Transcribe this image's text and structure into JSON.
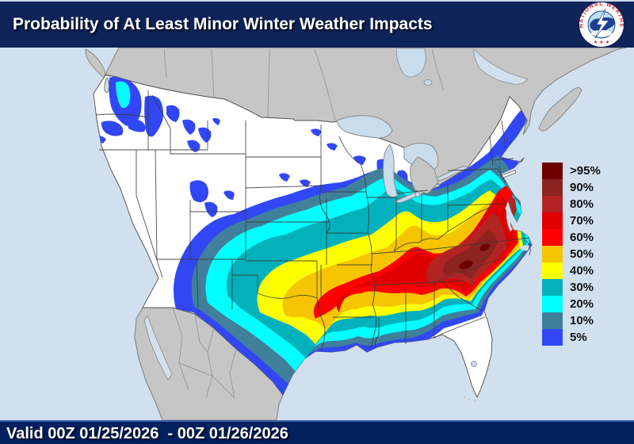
{
  "header": {
    "title": "Probability of At Least Minor Winter Weather Impacts",
    "logo": {
      "ring_text": "NATIONAL WEATHER SERVICE",
      "stars": "★ ★ ★"
    }
  },
  "footer": {
    "valid_text": "Valid 00Z 01/25/2026  - 00Z 01/26/2026"
  },
  "legend": {
    "items": [
      {
        "label": ">95%",
        "color": "#6f0000"
      },
      {
        "label": "90%",
        "color": "#8c2420"
      },
      {
        "label": "80%",
        "color": "#b22423"
      },
      {
        "label": "70%",
        "color": "#e10000"
      },
      {
        "label": "60%",
        "color": "#fe0000"
      },
      {
        "label": "50%",
        "color": "#f6c501"
      },
      {
        "label": "40%",
        "color": "#fdfe02"
      },
      {
        "label": "30%",
        "color": "#02b1bc"
      },
      {
        "label": "20%",
        "color": "#02feff"
      },
      {
        "label": "10%",
        "color": "#40809b"
      },
      {
        "label": "5%",
        "color": "#3147f5"
      }
    ]
  },
  "map": {
    "colors": {
      "ocean": "#d1e0ef",
      "us_land": "#ffffff",
      "foreign_land": "#c6c6c6",
      "foreign_border": "#8a8a8a",
      "state_border": "#3a3a3a",
      "lake": "#c9dcec",
      "coast": "#5a5a5a"
    }
  },
  "chart_data": {
    "type": "heatmap",
    "title": "Probability of At Least Minor Winter Weather Impacts",
    "valid_period": "00Z 01/25/2026 - 00Z 01/26/2026",
    "legend_labels": [
      ">95%",
      "90%",
      "80%",
      "70%",
      "60%",
      "50%",
      "40%",
      "30%",
      "20%",
      "10%",
      "5%"
    ],
    "legend_colors": [
      "#6f0000",
      "#8c2420",
      "#b22423",
      "#e10000",
      "#fe0000",
      "#f6c501",
      "#fdfe02",
      "#02b1bc",
      "#02feff",
      "#40809b",
      "#3147f5"
    ],
    "description": "CONUS map: highest probabilities (80-95%+, dark red) over eastern North Carolina and southeast Virginia including Delmarva; a 40-70% (yellow-orange-red) corridor from Oklahoma/Arkansas through Tennessee to the Mid-Atlantic coast; 5-30% (blue-cyan-teal) fringes from Texas through the Midwest to New England; scattered 5-20% patches over the Pacific Northwest and Rockies; Florida and far West mostly clear."
  }
}
